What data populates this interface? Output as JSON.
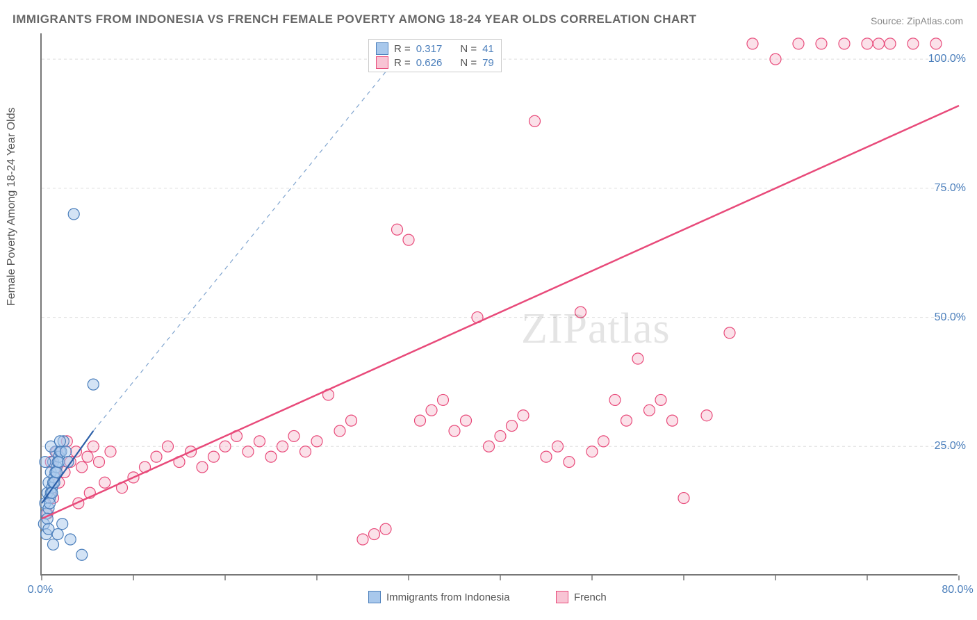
{
  "title": "IMMIGRANTS FROM INDONESIA VS FRENCH FEMALE POVERTY AMONG 18-24 YEAR OLDS CORRELATION CHART",
  "source": "Source: ZipAtlas.com",
  "watermark": "ZIPatlas",
  "ylabel": "Female Poverty Among 18-24 Year Olds",
  "chart": {
    "type": "scatter",
    "xlim": [
      0,
      80
    ],
    "ylim": [
      0,
      105
    ],
    "xtick_labels": [
      {
        "pos": 0,
        "label": "0.0%"
      },
      {
        "pos": 80,
        "label": "80.0%"
      }
    ],
    "ytick_labels": [
      {
        "pos": 25,
        "label": "25.0%"
      },
      {
        "pos": 50,
        "label": "50.0%"
      },
      {
        "pos": 75,
        "label": "75.0%"
      },
      {
        "pos": 100,
        "label": "100.0%"
      }
    ],
    "xtick_minor": [
      0,
      8,
      16,
      24,
      32,
      40,
      48,
      56,
      64,
      72,
      80
    ],
    "grid_color": "#dddddd",
    "grid_dash": "4,4",
    "axis_color": "#777777",
    "background_color": "#ffffff",
    "marker_radius": 8,
    "marker_stroke_width": 1.2,
    "series": [
      {
        "id": "indonesia",
        "label": "Immigrants from Indonesia",
        "fill": "#a8c8ec",
        "stroke": "#4a7ebb",
        "fill_opacity": 0.5,
        "r_value": "0.317",
        "n_value": "41",
        "regression": {
          "x1": 0,
          "y1": 14,
          "x2": 4.5,
          "y2": 28,
          "dash_extend_to": {
            "x": 32,
            "y": 103
          }
        },
        "line_color": "#2b5fa8",
        "line_width": 2.2,
        "points": [
          [
            0.3,
            14
          ],
          [
            0.5,
            16
          ],
          [
            0.6,
            18
          ],
          [
            0.8,
            20
          ],
          [
            1.0,
            22
          ],
          [
            1.2,
            24
          ],
          [
            0.4,
            12
          ],
          [
            0.7,
            15
          ],
          [
            0.9,
            17
          ],
          [
            1.1,
            19
          ],
          [
            1.3,
            21
          ],
          [
            1.5,
            23
          ],
          [
            0.2,
            10
          ],
          [
            0.6,
            13
          ],
          [
            0.8,
            16
          ],
          [
            1.0,
            18
          ],
          [
            1.2,
            20
          ],
          [
            1.4,
            22
          ],
          [
            1.6,
            24
          ],
          [
            0.5,
            11
          ],
          [
            0.7,
            14
          ],
          [
            0.9,
            16
          ],
          [
            1.1,
            18
          ],
          [
            1.3,
            20
          ],
          [
            1.5,
            22
          ],
          [
            1.7,
            24
          ],
          [
            1.9,
            26
          ],
          [
            2.1,
            24
          ],
          [
            2.3,
            22
          ],
          [
            0.4,
            8
          ],
          [
            0.6,
            9
          ],
          [
            1.8,
            10
          ],
          [
            2.5,
            7
          ],
          [
            3.5,
            4
          ],
          [
            1.0,
            6
          ],
          [
            1.4,
            8
          ],
          [
            2.8,
            70
          ],
          [
            4.5,
            37
          ],
          [
            0.3,
            22
          ],
          [
            0.8,
            25
          ],
          [
            1.6,
            26
          ]
        ]
      },
      {
        "id": "french",
        "label": "French",
        "fill": "#f8c4d4",
        "stroke": "#e84a7a",
        "fill_opacity": 0.5,
        "r_value": "0.626",
        "n_value": "79",
        "regression": {
          "x1": 0,
          "y1": 11,
          "x2": 80,
          "y2": 91
        },
        "line_color": "#e84a7a",
        "line_width": 2.5,
        "points": [
          [
            0.5,
            12
          ],
          [
            1.0,
            15
          ],
          [
            1.5,
            18
          ],
          [
            2.0,
            20
          ],
          [
            2.5,
            22
          ],
          [
            3.0,
            24
          ],
          [
            3.5,
            21
          ],
          [
            4.0,
            23
          ],
          [
            4.5,
            25
          ],
          [
            5.0,
            22
          ],
          [
            6.0,
            24
          ],
          [
            7.0,
            17
          ],
          [
            8.0,
            19
          ],
          [
            9.0,
            21
          ],
          [
            10,
            23
          ],
          [
            11,
            25
          ],
          [
            12,
            22
          ],
          [
            13,
            24
          ],
          [
            14,
            21
          ],
          [
            15,
            23
          ],
          [
            16,
            25
          ],
          [
            17,
            27
          ],
          [
            18,
            24
          ],
          [
            19,
            26
          ],
          [
            20,
            23
          ],
          [
            21,
            25
          ],
          [
            22,
            27
          ],
          [
            23,
            24
          ],
          [
            24,
            26
          ],
          [
            25,
            35
          ],
          [
            26,
            28
          ],
          [
            27,
            30
          ],
          [
            28,
            7
          ],
          [
            29,
            8
          ],
          [
            30,
            9
          ],
          [
            31,
            67
          ],
          [
            32,
            65
          ],
          [
            33,
            30
          ],
          [
            34,
            32
          ],
          [
            35,
            34
          ],
          [
            36,
            28
          ],
          [
            37,
            30
          ],
          [
            38,
            50
          ],
          [
            39,
            25
          ],
          [
            40,
            27
          ],
          [
            41,
            29
          ],
          [
            42,
            31
          ],
          [
            43,
            88
          ],
          [
            44,
            23
          ],
          [
            45,
            25
          ],
          [
            46,
            22
          ],
          [
            47,
            51
          ],
          [
            48,
            24
          ],
          [
            49,
            26
          ],
          [
            50,
            34
          ],
          [
            51,
            30
          ],
          [
            52,
            42
          ],
          [
            53,
            32
          ],
          [
            54,
            34
          ],
          [
            55,
            30
          ],
          [
            56,
            15
          ],
          [
            58,
            31
          ],
          [
            60,
            47
          ],
          [
            62,
            103
          ],
          [
            64,
            100
          ],
          [
            66,
            103
          ],
          [
            68,
            103
          ],
          [
            70,
            103
          ],
          [
            72,
            103
          ],
          [
            73,
            103
          ],
          [
            74,
            103
          ],
          [
            76,
            103
          ],
          [
            78,
            103
          ],
          [
            0.8,
            22
          ],
          [
            1.3,
            24
          ],
          [
            2.2,
            26
          ],
          [
            3.2,
            14
          ],
          [
            4.2,
            16
          ],
          [
            5.5,
            18
          ]
        ]
      }
    ]
  },
  "legend": {
    "r_label": "R =",
    "n_label": "N ="
  }
}
